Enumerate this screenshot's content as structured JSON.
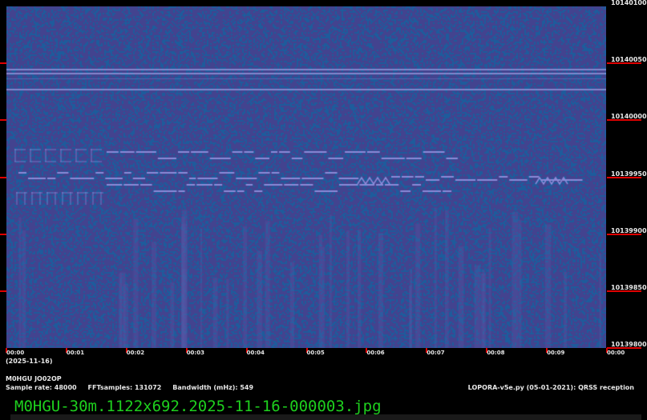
{
  "spectrogram": {
    "background_color": "#43438f",
    "noise_color": "#1d5c9c",
    "signal_color": "#8a8ad8",
    "frequency_labels": [
      "10140100",
      "10140050",
      "10140000",
      "10139950",
      "10139900",
      "10139850",
      "10139800"
    ],
    "time_labels": [
      "00:00",
      "00:01",
      "00:02",
      "00:03",
      "00:04",
      "00:05",
      "00:06",
      "00:07",
      "00:08",
      "00:09",
      "00:00"
    ],
    "date_label": "(2025-11-16)"
  },
  "info": {
    "station": "M0HGU JO02OP",
    "params": "Sample rate: 48000     FFTsamples: 131072     Bandwidth (mHz): 549",
    "software": "LOPORA-v5e.py (05-01-2021): QRSS reception"
  },
  "filename": "M0HGU-30m.1122x692.2025-11-16-000003.jpg"
}
